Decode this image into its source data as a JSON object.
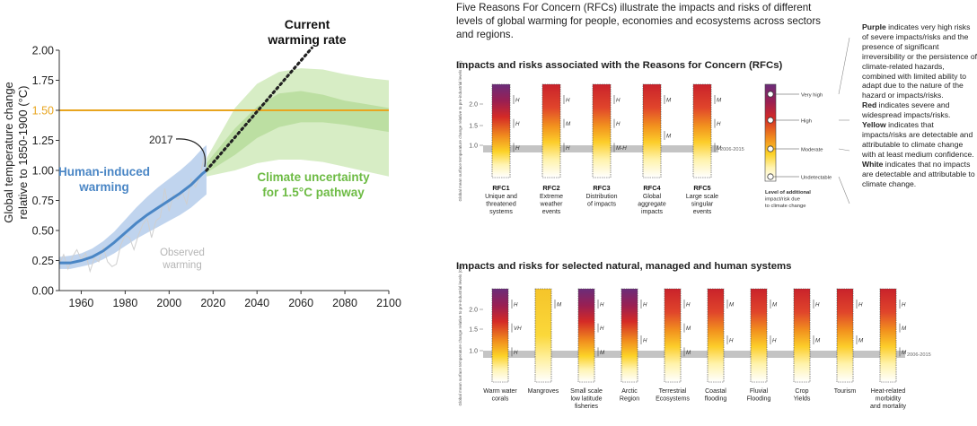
{
  "colors": {
    "observed": "#cfcfcf",
    "human_line": "#4a86c5",
    "human_band": "#b9cfec",
    "pathway_outer": "#d7edc5",
    "pathway_inner": "#b7dc9b",
    "pathway_label": "#6dbb44",
    "threshold": "#e8a51f",
    "current_rate": "#222222",
    "grey_band": "#c4c4c4"
  },
  "chart_data": [
    {
      "type": "line",
      "title": "",
      "ylabel": "Global temperature change relative to 1850-1900 (°C)",
      "xlabel": "",
      "xlim": [
        1950,
        2100
      ],
      "ylim": [
        0,
        2.0
      ],
      "xticks": [
        "1960",
        "1980",
        "2000",
        "2020",
        "2040",
        "2060",
        "2080",
        "2100"
      ],
      "yticks": [
        "0.00",
        "0.25",
        "0.50",
        "0.75",
        "1.00",
        "1.25",
        "1.50",
        "1.75",
        "2.00"
      ],
      "threshold": {
        "value": 1.5,
        "label": "1.50"
      },
      "series": [
        {
          "name": "Human-induced warming",
          "x": [
            1950,
            1955,
            1960,
            1965,
            1970,
            1975,
            1980,
            1985,
            1990,
            1995,
            2000,
            2005,
            2010,
            2015,
            2017
          ],
          "y": [
            0.23,
            0.23,
            0.25,
            0.28,
            0.33,
            0.4,
            0.48,
            0.56,
            0.63,
            0.69,
            0.75,
            0.81,
            0.88,
            0.97,
            1.0
          ],
          "band_low": [
            0.18,
            0.18,
            0.2,
            0.22,
            0.26,
            0.31,
            0.37,
            0.43,
            0.48,
            0.53,
            0.58,
            0.63,
            0.69,
            0.77,
            0.8
          ],
          "band_high": [
            0.28,
            0.29,
            0.31,
            0.35,
            0.41,
            0.49,
            0.59,
            0.69,
            0.78,
            0.86,
            0.93,
            1.0,
            1.08,
            1.18,
            1.21
          ]
        },
        {
          "name": "Observed warming",
          "x": [
            1950,
            1952,
            1954,
            1956,
            1958,
            1960,
            1962,
            1964,
            1966,
            1968,
            1970,
            1972,
            1974,
            1976,
            1978,
            1980,
            1982,
            1984,
            1986,
            1988,
            1990,
            1992,
            1994,
            1996,
            1998,
            2000,
            2002,
            2004,
            2006,
            2008,
            2010,
            2012,
            2014,
            2016
          ],
          "y": [
            0.22,
            0.3,
            0.18,
            0.28,
            0.34,
            0.26,
            0.31,
            0.16,
            0.27,
            0.24,
            0.36,
            0.24,
            0.2,
            0.22,
            0.38,
            0.46,
            0.44,
            0.34,
            0.46,
            0.55,
            0.6,
            0.44,
            0.58,
            0.61,
            0.85,
            0.66,
            0.8,
            0.76,
            0.82,
            0.72,
            0.93,
            0.86,
            0.95,
            1.12
          ]
        },
        {
          "name": "Climate uncertainty for 1.5°C pathway",
          "x": [
            2017,
            2030,
            2040,
            2050,
            2060,
            2070,
            2080,
            2090,
            2100
          ],
          "inner_low": [
            0.98,
            1.13,
            1.27,
            1.36,
            1.4,
            1.4,
            1.38,
            1.35,
            1.32
          ],
          "inner_high": [
            1.06,
            1.35,
            1.53,
            1.64,
            1.66,
            1.63,
            1.58,
            1.55,
            1.52
          ],
          "outer_low": [
            0.95,
            1.0,
            1.06,
            1.09,
            1.09,
            1.07,
            1.03,
            0.99,
            0.95
          ],
          "outer_high": [
            1.1,
            1.52,
            1.72,
            1.82,
            1.85,
            1.84,
            1.8,
            1.77,
            1.75
          ]
        },
        {
          "name": "Current warming rate",
          "x": [
            2017,
            2065
          ],
          "y": [
            1.0,
            2.02
          ]
        }
      ],
      "annotations": {
        "year_marker": "2017",
        "human_label": [
          "Human-induced",
          "warming"
        ],
        "observed_label": [
          "Observed",
          "warming"
        ],
        "pathway_label": [
          "Climate uncertainty",
          "for 1.5°C pathway"
        ],
        "current_label": [
          "Current",
          "warming rate"
        ]
      }
    }
  ],
  "intro_text": "Five Reasons For Concern (RFCs) illustrate the impacts and risks of different levels of global warming for people, economies and ecosystems across sectors and regions.",
  "rfc_section": {
    "title": "Impacts and risks associated with the Reasons for Concern (RFCs)",
    "axis_label": "Global mean surface temperature change relative to pre-industrial levels (0C)",
    "y_ticks": [
      "2.0",
      "1.5",
      "1.0"
    ],
    "band_label": "2006-2015",
    "columns": [
      {
        "name": "RFC1",
        "label": [
          "Unique and",
          "threatened",
          "systems"
        ],
        "bars": "purple-red-yellow",
        "confidence": [
          "H",
          "H",
          "H"
        ]
      },
      {
        "name": "RFC2",
        "label": [
          "Extreme",
          "weather",
          "events"
        ],
        "bars": "red-orange-yellow",
        "confidence": [
          "H",
          "M",
          "H"
        ]
      },
      {
        "name": "RFC3",
        "label": [
          "Distribution",
          "of impacts"
        ],
        "bars": "red-orange-yellow",
        "confidence": [
          "H",
          "H",
          "M-H"
        ]
      },
      {
        "name": "RFC4",
        "label": [
          "Global",
          "aggregate",
          "impacts"
        ],
        "bars": "red-orange-yellow",
        "confidence": [
          "M",
          "M"
        ]
      },
      {
        "name": "RFC5",
        "label": [
          "Large scale",
          "singular",
          "events"
        ],
        "bars": "red-orange-yellow",
        "confidence": [
          "M",
          "H",
          "M"
        ]
      }
    ],
    "scale": {
      "title": [
        "Level of additional",
        "impact/risk due",
        "to climate change"
      ],
      "levels": [
        "Very high",
        "High",
        "Moderate",
        "Undetectable"
      ]
    }
  },
  "legend_text": [
    {
      "bold": "Purple",
      "rest": " indicates very high risks of severe impacts/risks and the presence of significant irreversibility or the persistence of climate-related hazards, combined with limited ability to adapt due to the nature of the hazard or impacts/risks."
    },
    {
      "bold": "Red",
      "rest": " indicates severe and widespread impacts/risks."
    },
    {
      "bold": "Yellow",
      "rest": " indicates that impacts/risks are detectable and attributable to climate change with at least medium confidence."
    },
    {
      "bold": "White",
      "rest": " indicates that no impacts are detectable and attributable to climate change."
    }
  ],
  "systems_section": {
    "title": "Impacts and risks for selected natural, managed and human systems",
    "axis_label": "Global mean surface temperature change relative to pre-industrial levels (0C)",
    "y_ticks": [
      "2.0",
      "1.5",
      "1.0"
    ],
    "band_label": "2006-2015",
    "columns": [
      {
        "label": [
          "Warm water",
          "corals"
        ],
        "confidence": [
          "H",
          "VH",
          "H"
        ]
      },
      {
        "label": [
          "Mangroves"
        ],
        "confidence": [
          "M"
        ]
      },
      {
        "label": [
          "Small scale",
          "low latitude",
          "fisheries"
        ],
        "confidence": [
          "H",
          "H",
          "M"
        ]
      },
      {
        "label": [
          "Arctic",
          "Region"
        ],
        "confidence": [
          "H",
          "H"
        ]
      },
      {
        "label": [
          "Terrestrial",
          "Ecosystems"
        ],
        "confidence": [
          "H",
          "M",
          "M"
        ]
      },
      {
        "label": [
          "Coastal",
          "flooding"
        ],
        "confidence": [
          "M",
          "H"
        ]
      },
      {
        "label": [
          "Fluvial",
          "Flooding"
        ],
        "confidence": [
          "M",
          "H"
        ]
      },
      {
        "label": [
          "Crop",
          "Yields"
        ],
        "confidence": [
          "H",
          "M"
        ]
      },
      {
        "label": [
          "Tourism"
        ],
        "confidence": [
          "H",
          "M"
        ]
      },
      {
        "label": [
          "Heat-related",
          "morbidity",
          "and mortality"
        ],
        "confidence": [
          "H",
          "M",
          "M"
        ]
      }
    ]
  }
}
